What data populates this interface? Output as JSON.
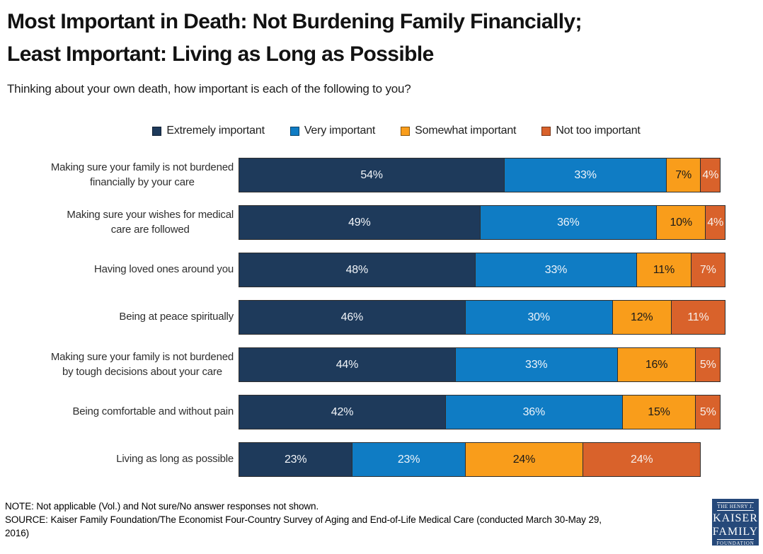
{
  "title": "Most Important in Death: Not Burdening Family Financially;\nLeast Important: Living as Long as Possible",
  "subtitle": "Thinking about your own death, how important is each of the following to you?",
  "note": "NOTE: Not applicable (Vol.) and Not sure/No answer responses not shown.\nSOURCE: Kaiser Family Foundation/The Economist Four-Country Survey of Aging and End-of-Life Medical Care (conducted March 30-May 29,\n2016)",
  "logo": {
    "top": "THE HENRY J.",
    "name_line1": "KAISER",
    "name_line2": "FAMILY",
    "bottom": "FOUNDATION"
  },
  "colors": {
    "extremely_important": "#1e3a5b",
    "very_important": "#0f7cc4",
    "somewhat_important": "#f99d1b",
    "not_too_important": "#d9622b",
    "logo_navy": "#26497a",
    "title_text": "#121212"
  },
  "chart_data": {
    "type": "bar",
    "stacked": true,
    "orientation": "horizontal",
    "unit": "percent",
    "value_suffix": "%",
    "xlim": [
      0,
      100
    ],
    "grid": false,
    "legend_position": "top",
    "categories": [
      "Making sure your family is not burdened financially by your care",
      "Making sure your wishes for medical care are followed",
      "Having loved ones around you",
      "Being at peace spiritually",
      "Making sure your family is not burdened by tough decisions about your care",
      "Being comfortable and without pain",
      "Living as long as possible"
    ],
    "categories_display": [
      "Making sure your family is not burdened\nfinancially by your care",
      "Making sure your wishes for medical\ncare are followed",
      "Having loved ones around you",
      "Being at peace spiritually",
      "Making sure your family is not burdened\nby tough decisions about your care",
      "Being comfortable and without pain",
      "Living as long as possible"
    ],
    "series": [
      {
        "name": "Extremely important",
        "color": "#1e3a5b",
        "label_color": "#f2f5f9",
        "values": [
          54,
          49,
          48,
          46,
          44,
          42,
          23
        ]
      },
      {
        "name": "Very important",
        "color": "#0f7cc4",
        "label_color": "#eef4fa",
        "values": [
          33,
          36,
          33,
          30,
          33,
          36,
          23
        ]
      },
      {
        "name": "Somewhat important",
        "color": "#f99d1b",
        "label_color": "#1a1a1a",
        "values": [
          7,
          10,
          11,
          12,
          16,
          15,
          24
        ]
      },
      {
        "name": "Not too important",
        "color": "#d9622b",
        "label_color": "#f7efe9",
        "values": [
          4,
          4,
          7,
          11,
          5,
          5,
          24
        ]
      }
    ]
  }
}
